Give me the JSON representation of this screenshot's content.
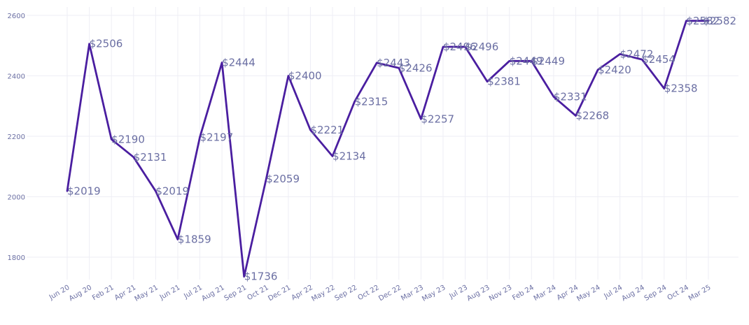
{
  "chart_data": {
    "type": "line",
    "title": "",
    "xlabel": "",
    "ylabel": "",
    "categories": [
      "Jun 20",
      "Aug 20",
      "Feb 21",
      "Apr 21",
      "May 21",
      "Jun 21",
      "Jul 21",
      "Aug 21",
      "Sep 21",
      "Oct 21",
      "Dec 21",
      "Apr 22",
      "May 22",
      "Sep 22",
      "Oct 22",
      "Dec 22",
      "Mar 23",
      "May 23",
      "Jul 23",
      "Aug 23",
      "Nov 23",
      "Feb 24",
      "Mar 24",
      "Apr 24",
      "May 24",
      "Jul 24",
      "Aug 24",
      "Sep 24",
      "Oct 24",
      "Mar 25"
    ],
    "series": [
      {
        "values": [
          2019,
          2506,
          2190,
          2131,
          2019,
          1859,
          2197,
          2444,
          1736,
          2059,
          2400,
          2221,
          2134,
          2315,
          2443,
          2426,
          2257,
          2496,
          2496,
          2381,
          2449,
          2449,
          2331,
          2268,
          2420,
          2472,
          2454,
          2358,
          2582,
          2582
        ],
        "labels": [
          "$2019",
          "$2506",
          "$2190",
          "$2131",
          "$2019",
          "$1859",
          "$2197",
          "$2444",
          "$1736",
          "$2059",
          "$2400",
          "$2221",
          "$2134",
          "$2315",
          "$2443",
          "$2426",
          "$2257",
          "$2496",
          "$2496",
          "$2381",
          "$2449",
          "$2449",
          "$2331",
          "$2268",
          "$2420",
          "$2472",
          "$2454",
          "$2358",
          "$2582",
          "$2582"
        ]
      }
    ],
    "yticks": [
      1800,
      2000,
      2200,
      2400,
      2600
    ],
    "ylim": [
      1700,
      2630
    ],
    "grid": true,
    "colors": {
      "line": "#4a1ea0",
      "text": "#6b6fa3",
      "grid": "#eeeef5"
    }
  }
}
